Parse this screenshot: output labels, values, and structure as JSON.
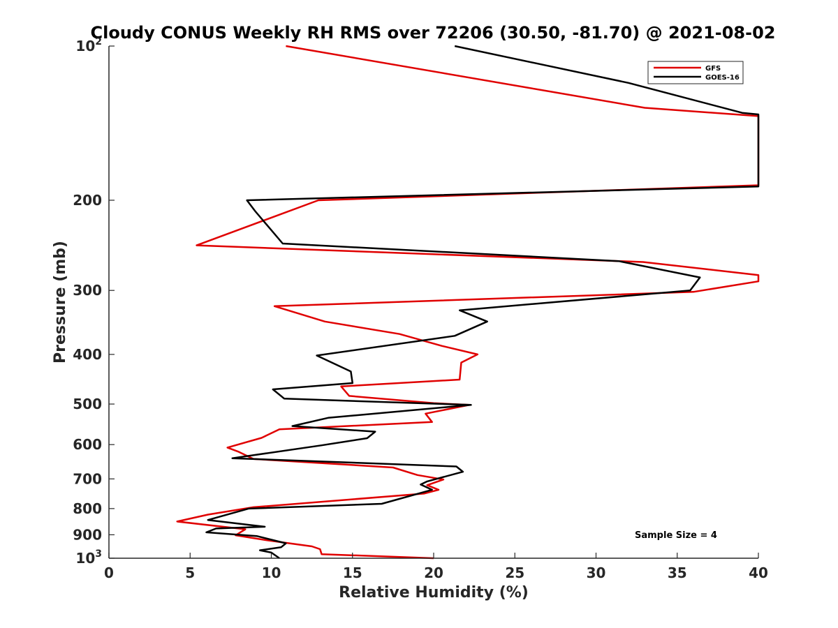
{
  "chart_data": {
    "type": "line",
    "title": "Cloudy CONUS Weekly RH RMS over 72206 (30.50, -81.70) @ 2021-08-02",
    "xlabel": "Relative Humidity (%)",
    "ylabel": "Pressure (mb)",
    "xlim": [
      0,
      40
    ],
    "ylim": [
      100,
      1000
    ],
    "yscale": "log",
    "y_reversed": true,
    "x_ticks": [
      {
        "value": 0,
        "label": "0"
      },
      {
        "value": 5,
        "label": "5"
      },
      {
        "value": 10,
        "label": "10"
      },
      {
        "value": 15,
        "label": "15"
      },
      {
        "value": 20,
        "label": "20"
      },
      {
        "value": 25,
        "label": "25"
      },
      {
        "value": 30,
        "label": "30"
      },
      {
        "value": 35,
        "label": "35"
      },
      {
        "value": 40,
        "label": "40"
      }
    ],
    "y_ticks": [
      {
        "value": 100,
        "label": "10",
        "exp": "2"
      },
      {
        "value": 200,
        "label": "200"
      },
      {
        "value": 300,
        "label": "300"
      },
      {
        "value": 400,
        "label": "400"
      },
      {
        "value": 500,
        "label": "500"
      },
      {
        "value": 600,
        "label": "600"
      },
      {
        "value": 700,
        "label": "700"
      },
      {
        "value": 800,
        "label": "800"
      },
      {
        "value": 900,
        "label": "900"
      },
      {
        "value": 1000,
        "label": "10",
        "exp": "3"
      }
    ],
    "legend_position": "top-right",
    "annotation": "Sample Size = 4",
    "series": [
      {
        "name": "GFS",
        "color": "#e00000",
        "points": [
          [
            10.9,
            100
          ],
          [
            33.0,
            132
          ],
          [
            40.0,
            137
          ],
          [
            40.0,
            187
          ],
          [
            12.9,
            200
          ],
          [
            5.4,
            245
          ],
          [
            32.9,
            264
          ],
          [
            40.0,
            280
          ],
          [
            40.0,
            288
          ],
          [
            36.0,
            302
          ],
          [
            10.2,
            322
          ],
          [
            13.3,
            345
          ],
          [
            17.9,
            365
          ],
          [
            20.5,
            385
          ],
          [
            22.7,
            400
          ],
          [
            21.7,
            415
          ],
          [
            21.6,
            448
          ],
          [
            14.3,
            462
          ],
          [
            14.8,
            482
          ],
          [
            20.0,
            498
          ],
          [
            22.2,
            502
          ],
          [
            19.5,
            522
          ],
          [
            19.9,
            542
          ],
          [
            10.5,
            560
          ],
          [
            9.4,
            582
          ],
          [
            7.3,
            608
          ],
          [
            8.0,
            620
          ],
          [
            8.9,
            640
          ],
          [
            17.5,
            665
          ],
          [
            19.0,
            688
          ],
          [
            20.6,
            702
          ],
          [
            19.6,
            720
          ],
          [
            20.3,
            735
          ],
          [
            19.4,
            748
          ],
          [
            8.9,
            795
          ],
          [
            6.1,
            822
          ],
          [
            4.2,
            848
          ],
          [
            8.4,
            878
          ],
          [
            7.8,
            902
          ],
          [
            9.7,
            922
          ],
          [
            12.5,
            948
          ],
          [
            13.0,
            960
          ],
          [
            13.1,
            982
          ],
          [
            20.0,
            1000
          ]
        ]
      },
      {
        "name": "GOES-16",
        "color": "#000000",
        "points": [
          [
            21.3,
            100
          ],
          [
            32.0,
            118
          ],
          [
            39.0,
            135
          ],
          [
            40.0,
            136
          ],
          [
            40.0,
            188
          ],
          [
            8.5,
            200
          ],
          [
            9.0,
            210
          ],
          [
            10.7,
            243
          ],
          [
            31.4,
            263
          ],
          [
            36.4,
            283
          ],
          [
            35.8,
            300
          ],
          [
            21.6,
            328
          ],
          [
            23.3,
            345
          ],
          [
            21.3,
            368
          ],
          [
            12.8,
            402
          ],
          [
            14.9,
            432
          ],
          [
            15.0,
            455
          ],
          [
            10.1,
            468
          ],
          [
            10.8,
            488
          ],
          [
            22.3,
            502
          ],
          [
            13.5,
            532
          ],
          [
            11.3,
            552
          ],
          [
            16.4,
            566
          ],
          [
            15.9,
            583
          ],
          [
            13.1,
            602
          ],
          [
            7.6,
            638
          ],
          [
            21.4,
            662
          ],
          [
            21.8,
            678
          ],
          [
            19.6,
            708
          ],
          [
            19.2,
            718
          ],
          [
            19.9,
            735
          ],
          [
            16.8,
            783
          ],
          [
            8.6,
            800
          ],
          [
            6.1,
            842
          ],
          [
            9.6,
            868
          ],
          [
            6.6,
            875
          ],
          [
            6.0,
            890
          ],
          [
            9.1,
            905
          ],
          [
            10.9,
            935
          ],
          [
            10.6,
            952
          ],
          [
            9.3,
            965
          ],
          [
            10.0,
            975
          ],
          [
            10.5,
            1000
          ]
        ]
      }
    ]
  }
}
